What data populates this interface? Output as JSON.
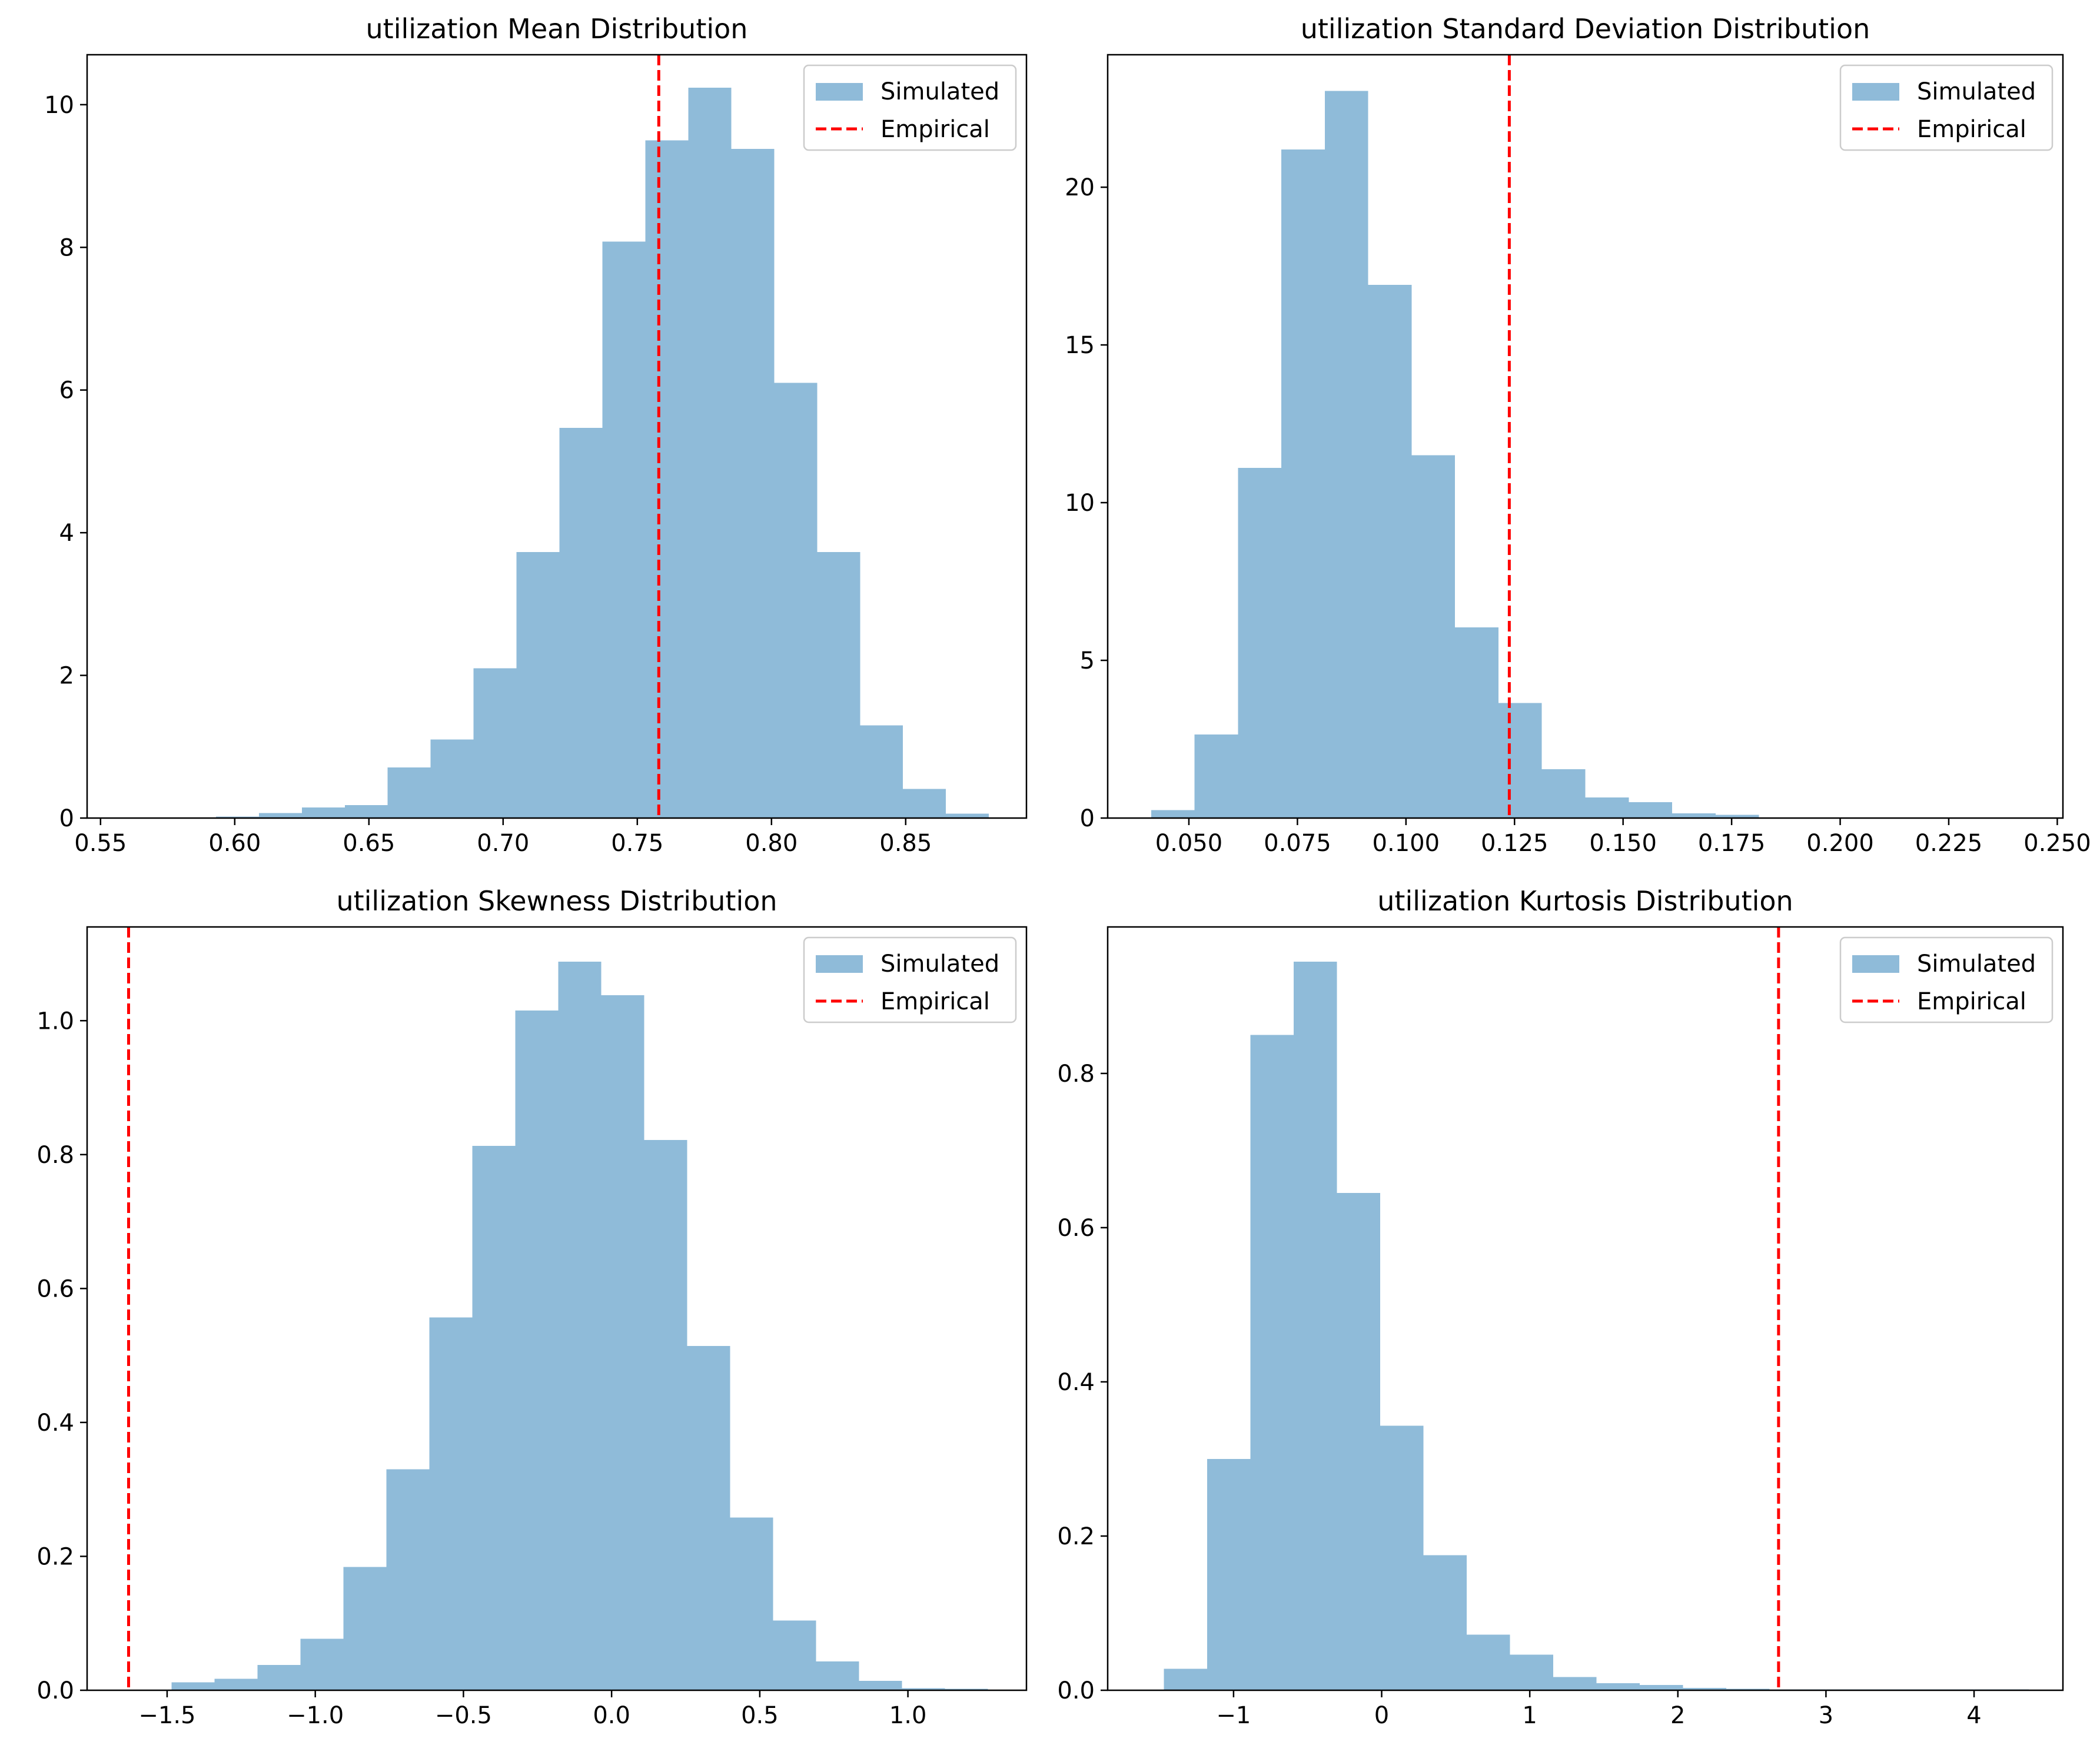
{
  "colors": {
    "bars": "#1f77b4",
    "bars_opacity": 0.5,
    "empirical_line": "#ff0000",
    "axes": "#000000"
  },
  "chart_data": [
    {
      "type": "bar",
      "title": "utilization Mean Distribution",
      "xlabel": "",
      "ylabel": "",
      "xlim": [
        0.545,
        0.895
      ],
      "ylim": [
        0,
        10.7
      ],
      "xticks": [
        0.55,
        0.6,
        0.65,
        0.7,
        0.75,
        0.8,
        0.85
      ],
      "xtick_labels": [
        "0.55",
        "0.60",
        "0.65",
        "0.70",
        "0.75",
        "0.80",
        "0.85"
      ],
      "yticks": [
        0,
        2,
        4,
        6,
        8,
        10
      ],
      "ytick_labels": [
        "0",
        "2",
        "4",
        "6",
        "8",
        "10"
      ],
      "bin_edges": [
        0.561,
        0.577,
        0.593,
        0.609,
        0.625,
        0.641,
        0.657,
        0.673,
        0.689,
        0.705,
        0.721,
        0.737,
        0.753,
        0.769,
        0.785,
        0.801,
        0.817,
        0.833,
        0.849,
        0.865,
        0.881
      ],
      "values": [
        0.0,
        0.0,
        0.02,
        0.07,
        0.15,
        0.18,
        0.71,
        1.1,
        2.1,
        3.73,
        5.47,
        8.08,
        9.5,
        10.24,
        9.38,
        6.1,
        3.73,
        1.3,
        0.41,
        0.06
      ],
      "empirical": 0.758,
      "legend": [
        "Simulated",
        "Empirical"
      ],
      "legend_loc": "upper right",
      "grid": false
    },
    {
      "type": "bar",
      "title": "utilization Standard Deviation Distribution",
      "xlabel": "",
      "ylabel": "",
      "xlim": [
        0.0313,
        0.2513
      ],
      "ylim": [
        0,
        24.2
      ],
      "xticks": [
        0.05,
        0.075,
        0.1,
        0.125,
        0.15,
        0.175,
        0.2,
        0.225,
        0.25
      ],
      "xtick_labels": [
        "0.050",
        "0.075",
        "0.100",
        "0.125",
        "0.150",
        "0.175",
        "0.200",
        "0.225",
        "0.250"
      ],
      "yticks": [
        0,
        5,
        10,
        15,
        20
      ],
      "ytick_labels": [
        "0",
        "5",
        "10",
        "15",
        "20"
      ],
      "bin_edges": [
        0.0413,
        0.0513,
        0.0613,
        0.0713,
        0.0813,
        0.0913,
        0.1013,
        0.1113,
        0.1213,
        0.1313,
        0.1413,
        0.1513,
        0.1613,
        0.1713,
        0.1813,
        0.1913,
        0.2013,
        0.2113,
        0.2213,
        0.2313,
        0.2413
      ],
      "values": [
        0.25,
        2.65,
        11.1,
        21.2,
        23.05,
        16.9,
        11.5,
        6.05,
        3.65,
        1.55,
        0.65,
        0.5,
        0.15,
        0.1,
        0.02,
        0.02,
        0.01,
        0.01,
        0.01,
        0.01
      ],
      "empirical": 0.1238,
      "legend": [
        "Simulated",
        "Empirical"
      ],
      "legend_loc": "upper right",
      "grid": false
    },
    {
      "type": "bar",
      "title": "utilization Skewness Distribution",
      "xlabel": "",
      "ylabel": "",
      "xlim": [
        -1.77,
        1.4
      ],
      "ylim": [
        0,
        1.14
      ],
      "xticks": [
        -1.5,
        -1.0,
        -0.5,
        0.0,
        0.5,
        1.0
      ],
      "xtick_labels": [
        "−1.5",
        "−1.0",
        "−0.5",
        "0.0",
        "0.5",
        "1.0"
      ],
      "yticks": [
        0.0,
        0.2,
        0.4,
        0.6,
        0.8,
        1.0
      ],
      "ytick_labels": [
        "0.0",
        "0.2",
        "0.4",
        "0.6",
        "0.8",
        "1.0"
      ],
      "bin_edges": [
        -1.63,
        -1.485,
        -1.34,
        -1.195,
        -1.05,
        -0.905,
        -0.76,
        -0.615,
        -0.47,
        -0.325,
        -0.18,
        -0.035,
        0.11,
        0.255,
        0.4,
        0.545,
        0.69,
        0.835,
        0.98,
        1.125,
        1.27
      ],
      "values": [
        0.0,
        0.012,
        0.017,
        0.038,
        0.077,
        0.184,
        0.33,
        0.557,
        0.813,
        1.015,
        1.088,
        1.038,
        0.822,
        0.514,
        0.258,
        0.104,
        0.043,
        0.014,
        0.003,
        0.002
      ],
      "empirical": -1.63,
      "legend": [
        "Simulated",
        "Empirical"
      ],
      "legend_loc": "upper right",
      "grid": false
    },
    {
      "type": "bar",
      "title": "utilization Kurtosis Distribution",
      "xlabel": "",
      "ylabel": "",
      "xlim": [
        -1.85,
        4.6
      ],
      "ylim": [
        0,
        0.99
      ],
      "xticks": [
        -1,
        0,
        1,
        2,
        3,
        4
      ],
      "xtick_labels": [
        "−1",
        "0",
        "1",
        "2",
        "3",
        "4"
      ],
      "yticks": [
        0.0,
        0.2,
        0.4,
        0.6,
        0.8
      ],
      "ytick_labels": [
        "0.0",
        "0.2",
        "0.4",
        "0.6",
        "0.8"
      ],
      "bin_edges": [
        -1.47,
        -1.178,
        -0.886,
        -0.594,
        -0.302,
        -0.01,
        0.282,
        0.574,
        0.866,
        1.158,
        1.45,
        1.742,
        2.034,
        2.326,
        2.618,
        2.91,
        3.202,
        3.494,
        3.786,
        4.078,
        4.37
      ],
      "values": [
        0.028,
        0.3,
        0.85,
        0.945,
        0.645,
        0.343,
        0.175,
        0.072,
        0.046,
        0.017,
        0.009,
        0.007,
        0.003,
        0.002,
        0.001,
        0.001,
        0.001,
        0.001,
        0.001,
        0.001
      ],
      "empirical": 2.68,
      "legend": [
        "Simulated",
        "Empirical"
      ],
      "legend_loc": "upper right",
      "grid": false
    }
  ]
}
